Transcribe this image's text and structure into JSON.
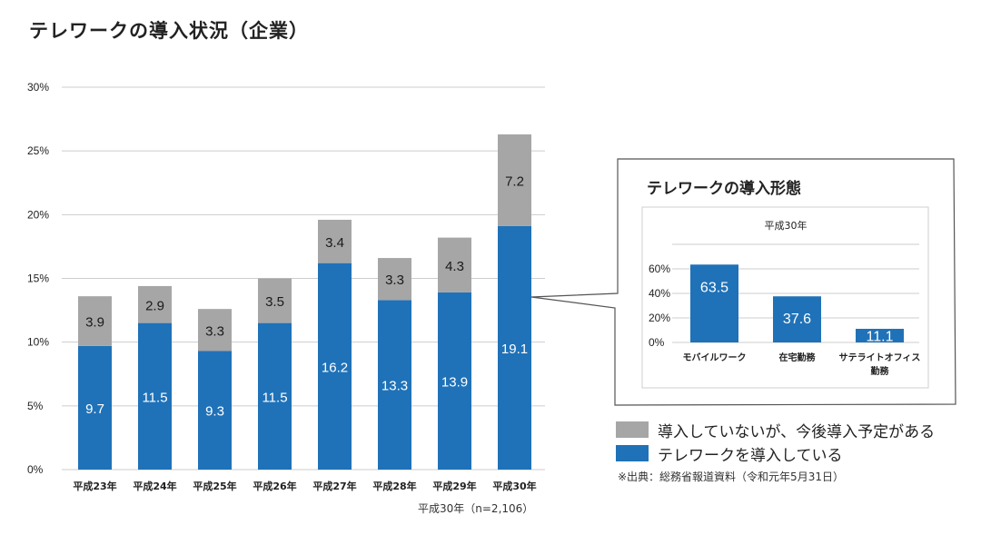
{
  "title": "テレワークの導入状況（企業）",
  "colors": {
    "adopted": "#1f72b8",
    "planned": "#a6a6a6",
    "grid": "#cccccc",
    "border": "#555555"
  },
  "chart_data": [
    {
      "type": "bar",
      "stacked": true,
      "title": "テレワークの導入状況（企業）",
      "categories": [
        "平成23年",
        "平成24年",
        "平成25年",
        "平成26年",
        "平成27年",
        "平成28年",
        "平成29年",
        "平成30年"
      ],
      "series": [
        {
          "name": "テレワークを導入している",
          "values": [
            9.7,
            11.5,
            9.3,
            11.5,
            16.2,
            13.3,
            13.9,
            19.1
          ]
        },
        {
          "name": "導入していないが、今後導入予定がある",
          "values": [
            3.9,
            2.9,
            3.3,
            3.5,
            3.4,
            3.3,
            4.3,
            7.2
          ]
        }
      ],
      "yticks": [
        "0%",
        "5%",
        "10%",
        "15%",
        "20%",
        "25%",
        "30%"
      ],
      "ylim": [
        0,
        30
      ],
      "ylabel": "",
      "xlabel": "",
      "grid": true,
      "note": "平成30年（n=2,106）"
    },
    {
      "type": "bar",
      "title": "テレワークの導入形態",
      "subtitle": "平成30年",
      "categories": [
        "モバイルワーク",
        "在宅勤務",
        "サテライトオフィス勤務"
      ],
      "category_lines": [
        [
          "モバイルワーク"
        ],
        [
          "在宅勤務"
        ],
        [
          "サテライトオフィス",
          "勤務"
        ]
      ],
      "values": [
        63.5,
        37.6,
        11.1
      ],
      "yticks": [
        "0%",
        "20%",
        "40%",
        "60%"
      ],
      "ylim": [
        0,
        80
      ],
      "grid": true
    }
  ],
  "legend": {
    "position": "bottom-right",
    "items": [
      {
        "label": "導入していないが、今後導入予定がある",
        "color": "#a6a6a6"
      },
      {
        "label": "テレワークを導入している",
        "color": "#1f72b8"
      }
    ]
  },
  "source": "※出典：総務省報道資料（令和元年5月31日）"
}
